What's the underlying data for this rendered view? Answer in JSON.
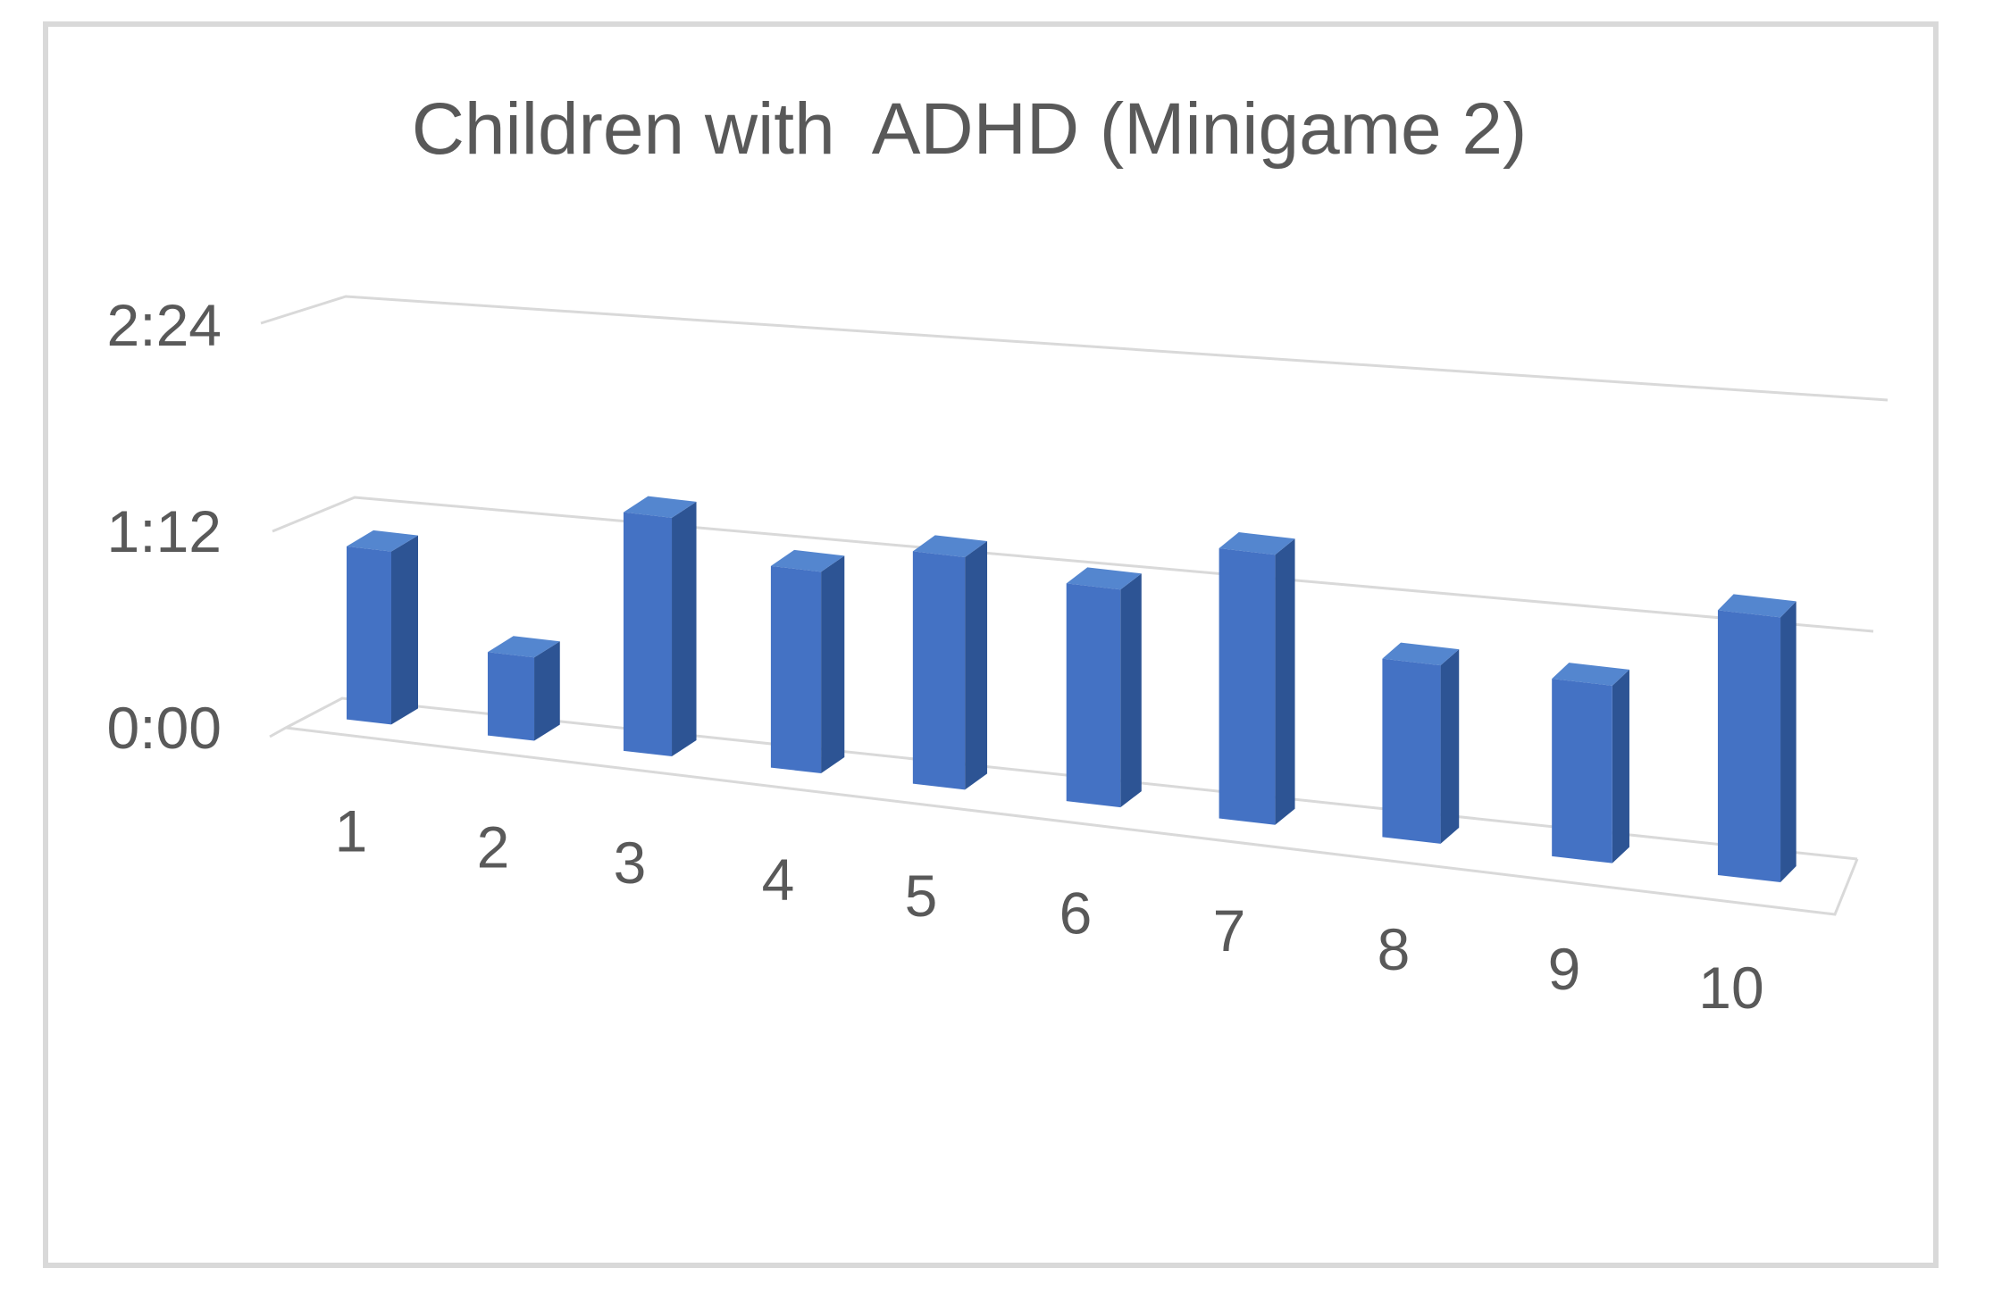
{
  "chart_title": "Children with  ADHD (Minigame 2)",
  "colors": {
    "bar_front": "#4472C4",
    "bar_top": "#5486CF",
    "bar_side": "#2D5494",
    "gridline": "#D9D9D9",
    "border": "#D9D9D9",
    "text": "#595959",
    "background": "#FFFFFF"
  },
  "chart_data": {
    "type": "bar",
    "style": "3d-clustered-column",
    "title": "Children with  ADHD (Minigame 2)",
    "categories": [
      "1",
      "2",
      "3",
      "4",
      "5",
      "6",
      "7",
      "8",
      "9",
      "10"
    ],
    "series": [
      {
        "name": "Children with ADHD (Minigame 2)",
        "values_display": [
          "1:03",
          "0:30",
          "1:25",
          "1:11",
          "1:21",
          "1:15",
          "1:32",
          "1:00",
          "0:59",
          "1:27"
        ],
        "values_seconds": [
          63,
          30,
          85,
          71,
          81,
          75,
          92,
          60,
          59,
          87
        ]
      }
    ],
    "xlabel": "",
    "ylabel": "",
    "y_ticks": [
      "0:00",
      "1:12",
      "2:24"
    ],
    "y_major_unit_seconds": 72,
    "ylim_seconds": [
      0,
      144
    ],
    "grid": true,
    "legend": false
  }
}
